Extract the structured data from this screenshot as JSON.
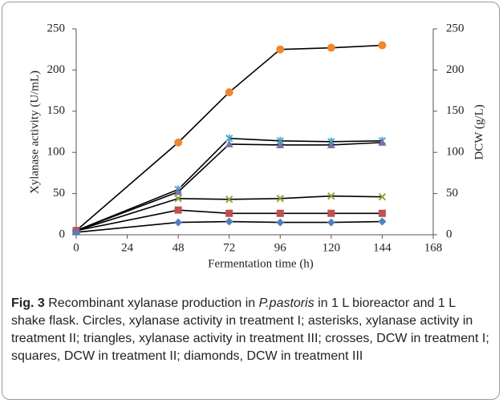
{
  "chart_data": {
    "type": "line",
    "x_label": "Fermentation time (h)",
    "y_label": "Xylanase activity (U/mL)",
    "y2_label": "DCW (g/L)",
    "x": [
      0,
      48,
      72,
      96,
      120,
      144
    ],
    "xlim": [
      0,
      168
    ],
    "xticks": [
      0,
      24,
      48,
      72,
      96,
      120,
      144,
      168
    ],
    "ylim": [
      0,
      250
    ],
    "yticks": [
      0,
      50,
      100,
      150,
      200,
      250
    ],
    "y2lim": [
      0,
      250
    ],
    "y2ticks": [
      0,
      50,
      100,
      150,
      200,
      250
    ],
    "series": [
      {
        "marker": "circle",
        "color": "#f0862d",
        "values": [
          5,
          112,
          173,
          225,
          227,
          230
        ]
      },
      {
        "marker": "asterisk",
        "color": "#4bacc6",
        "values": [
          5,
          55,
          117,
          114,
          113,
          114
        ]
      },
      {
        "marker": "triangle",
        "color": "#7f6fa6",
        "values": [
          5,
          52,
          110,
          109,
          109,
          112
        ]
      },
      {
        "marker": "cross",
        "color": "#8aa63a",
        "axis": "y2",
        "values": [
          5,
          44,
          43,
          44,
          47,
          46
        ]
      },
      {
        "marker": "square",
        "color": "#c0504d",
        "axis": "y2",
        "values": [
          5,
          30,
          26,
          26,
          26,
          26
        ]
      },
      {
        "marker": "diamond",
        "color": "#4f81bd",
        "axis": "y2",
        "values": [
          3,
          15,
          16,
          15,
          15,
          16
        ]
      }
    ]
  },
  "caption": {
    "label": "Fig. 3",
    "text1": "Recombinant xylanase production in ",
    "italic": "P.pastoris",
    "text2": " in 1 L bioreactor and 1 L shake flask. Circles, xylanase activity in treatment I; asterisks, xylanase activity in treatment II; triangles, xylanase activity in treatment III; crosses, DCW in treatment I; squares, DCW in treatment II; diamonds, DCW in treatment III"
  }
}
